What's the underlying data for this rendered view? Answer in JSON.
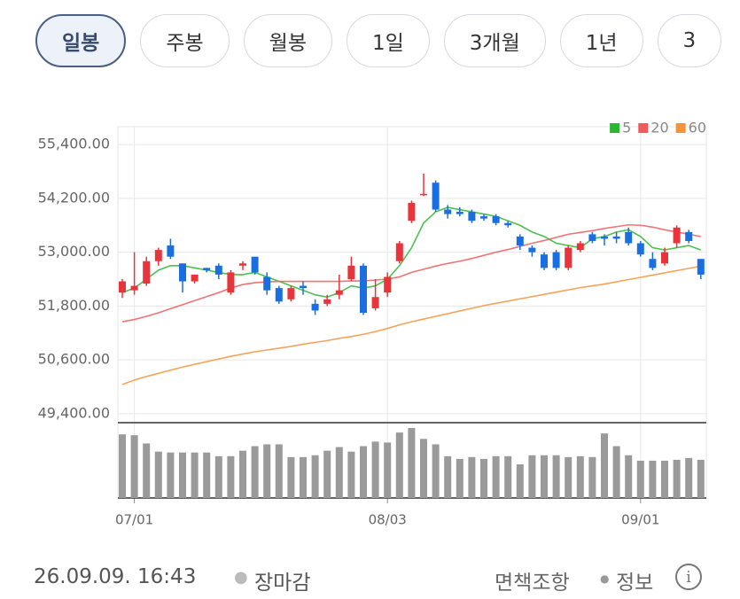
{
  "tabs": [
    {
      "label": "일봉",
      "selected": true
    },
    {
      "label": "주봉",
      "selected": false
    },
    {
      "label": "월봉",
      "selected": false
    },
    {
      "label": "1일",
      "selected": false
    },
    {
      "label": "3개월",
      "selected": false
    },
    {
      "label": "1년",
      "selected": false
    },
    {
      "label": "3",
      "selected": false
    }
  ],
  "chart_data": {
    "type": "candlestick",
    "categories": [
      null,
      "07/01",
      null,
      null,
      null,
      null,
      null,
      null,
      null,
      null,
      null,
      null,
      null,
      null,
      null,
      null,
      null,
      null,
      null,
      null,
      null,
      null,
      "08/03",
      null,
      null,
      null,
      null,
      null,
      null,
      null,
      null,
      null,
      null,
      null,
      null,
      null,
      null,
      null,
      null,
      null,
      null,
      null,
      null,
      "09/01",
      null,
      null,
      null,
      null,
      null
    ],
    "open": [
      52100,
      52150,
      52300,
      52800,
      53150,
      52750,
      52350,
      52650,
      52700,
      52100,
      52700,
      52900,
      52450,
      52200,
      51950,
      52250,
      51850,
      51850,
      52050,
      52400,
      52700,
      51750,
      52100,
      52800,
      53700,
      54300,
      54550,
      53950,
      53900,
      53900,
      53800,
      53800,
      53650,
      53350,
      53100,
      52950,
      53000,
      52650,
      53050,
      53400,
      53350,
      53350,
      53450,
      53200,
      52850,
      52750,
      53200,
      53450,
      52850
    ],
    "high": [
      52400,
      53000,
      52900,
      53100,
      53300,
      52750,
      52500,
      52650,
      52750,
      52600,
      52800,
      52900,
      52550,
      52250,
      52250,
      52350,
      51950,
      52050,
      52500,
      52900,
      52750,
      52400,
      52550,
      53250,
      54150,
      54750,
      54600,
      54050,
      54000,
      53950,
      53850,
      53850,
      53700,
      53400,
      53150,
      53000,
      53050,
      53150,
      53250,
      53450,
      53400,
      53450,
      53550,
      53250,
      53000,
      53100,
      53600,
      53500,
      52850
    ],
    "low": [
      51980,
      52050,
      52250,
      52700,
      52850,
      52100,
      52300,
      52550,
      52400,
      52050,
      52600,
      52500,
      52050,
      51850,
      51900,
      52050,
      51600,
      51800,
      51950,
      52350,
      51600,
      51700,
      52000,
      52750,
      53650,
      54250,
      53900,
      53750,
      53800,
      53650,
      53700,
      53600,
      53550,
      53050,
      52900,
      52600,
      52600,
      52600,
      53000,
      53200,
      53150,
      53200,
      53150,
      52900,
      52600,
      52700,
      53100,
      53200,
      52400
    ],
    "close": [
      52350,
      52250,
      52800,
      53050,
      52900,
      52350,
      52500,
      52600,
      52500,
      52550,
      52750,
      52550,
      52150,
      51900,
      52200,
      52200,
      51700,
      51950,
      52150,
      52700,
      51650,
      52000,
      52450,
      53200,
      54100,
      54300,
      53950,
      53850,
      53850,
      53700,
      53750,
      53650,
      53600,
      53150,
      53000,
      52650,
      52650,
      53100,
      53200,
      53250,
      53300,
      53300,
      53200,
      52950,
      52650,
      53000,
      53550,
      53250,
      52500
    ],
    "up_color": "#e8343b",
    "down_color": "#1a6fe0",
    "series": [
      {
        "name": "5",
        "color": "#2bb633",
        "values": [
          52100,
          52200,
          52400,
          52600,
          52700,
          52700,
          52650,
          52600,
          52550,
          52500,
          52500,
          52550,
          52450,
          52350,
          52250,
          52150,
          52050,
          52000,
          52100,
          52250,
          52200,
          52250,
          52400,
          52700,
          53100,
          53650,
          53900,
          54000,
          53950,
          53900,
          53850,
          53800,
          53700,
          53600,
          53450,
          53350,
          53200,
          53150,
          53100,
          53300,
          53350,
          53450,
          53500,
          53350,
          53100,
          53050,
          53100,
          53150,
          53050
        ]
      },
      {
        "name": "20",
        "color": "#f05a5a",
        "values": [
          51450,
          51500,
          51570,
          51650,
          51740,
          51830,
          51920,
          52010,
          52100,
          52200,
          52280,
          52320,
          52340,
          52350,
          52350,
          52350,
          52350,
          52350,
          52350,
          52360,
          52360,
          52380,
          52400,
          52450,
          52550,
          52620,
          52690,
          52750,
          52800,
          52860,
          52930,
          53000,
          53060,
          53130,
          53200,
          53260,
          53330,
          53400,
          53440,
          53480,
          53530,
          53570,
          53610,
          53600,
          53560,
          53500,
          53450,
          53400,
          53350
        ]
      },
      {
        "name": "60",
        "color": "#f7923a",
        "values": [
          50050,
          50150,
          50230,
          50300,
          50370,
          50440,
          50500,
          50560,
          50620,
          50680,
          50730,
          50780,
          50820,
          50860,
          50900,
          50950,
          50990,
          51030,
          51080,
          51120,
          51170,
          51230,
          51300,
          51380,
          51450,
          51510,
          51570,
          51630,
          51690,
          51750,
          51810,
          51860,
          51910,
          51960,
          52010,
          52060,
          52110,
          52160,
          52210,
          52250,
          52290,
          52340,
          52390,
          52440,
          52490,
          52540,
          52590,
          52640,
          52690
        ]
      }
    ],
    "volume": {
      "color": "#9a9a9a",
      "values": [
        70,
        69,
        60,
        51,
        50,
        50,
        50,
        50,
        46,
        46,
        52,
        57,
        59,
        59,
        45,
        45,
        47,
        52,
        56,
        51,
        57,
        62,
        61,
        72,
        77,
        65,
        59,
        46,
        43,
        45,
        43,
        46,
        46,
        37,
        47,
        47,
        47,
        45,
        46,
        45,
        71,
        57,
        47,
        41,
        41,
        41,
        42,
        44,
        42
      ]
    },
    "ylim": [
      49200,
      55600
    ],
    "yticks": [
      {
        "value": 49400,
        "label": "49,400.00"
      },
      {
        "value": 50600,
        "label": "50,600.00"
      },
      {
        "value": 51800,
        "label": "51,800.00"
      },
      {
        "value": 53000,
        "label": "53,000.00"
      },
      {
        "value": 54200,
        "label": "54,200.00"
      },
      {
        "value": 55400,
        "label": "55,400.00"
      }
    ],
    "grid": true
  },
  "footer": {
    "timestamp": "26.09.09. 16:43",
    "status": "장마감",
    "disclaimer": "면책조항",
    "info": "정보"
  }
}
